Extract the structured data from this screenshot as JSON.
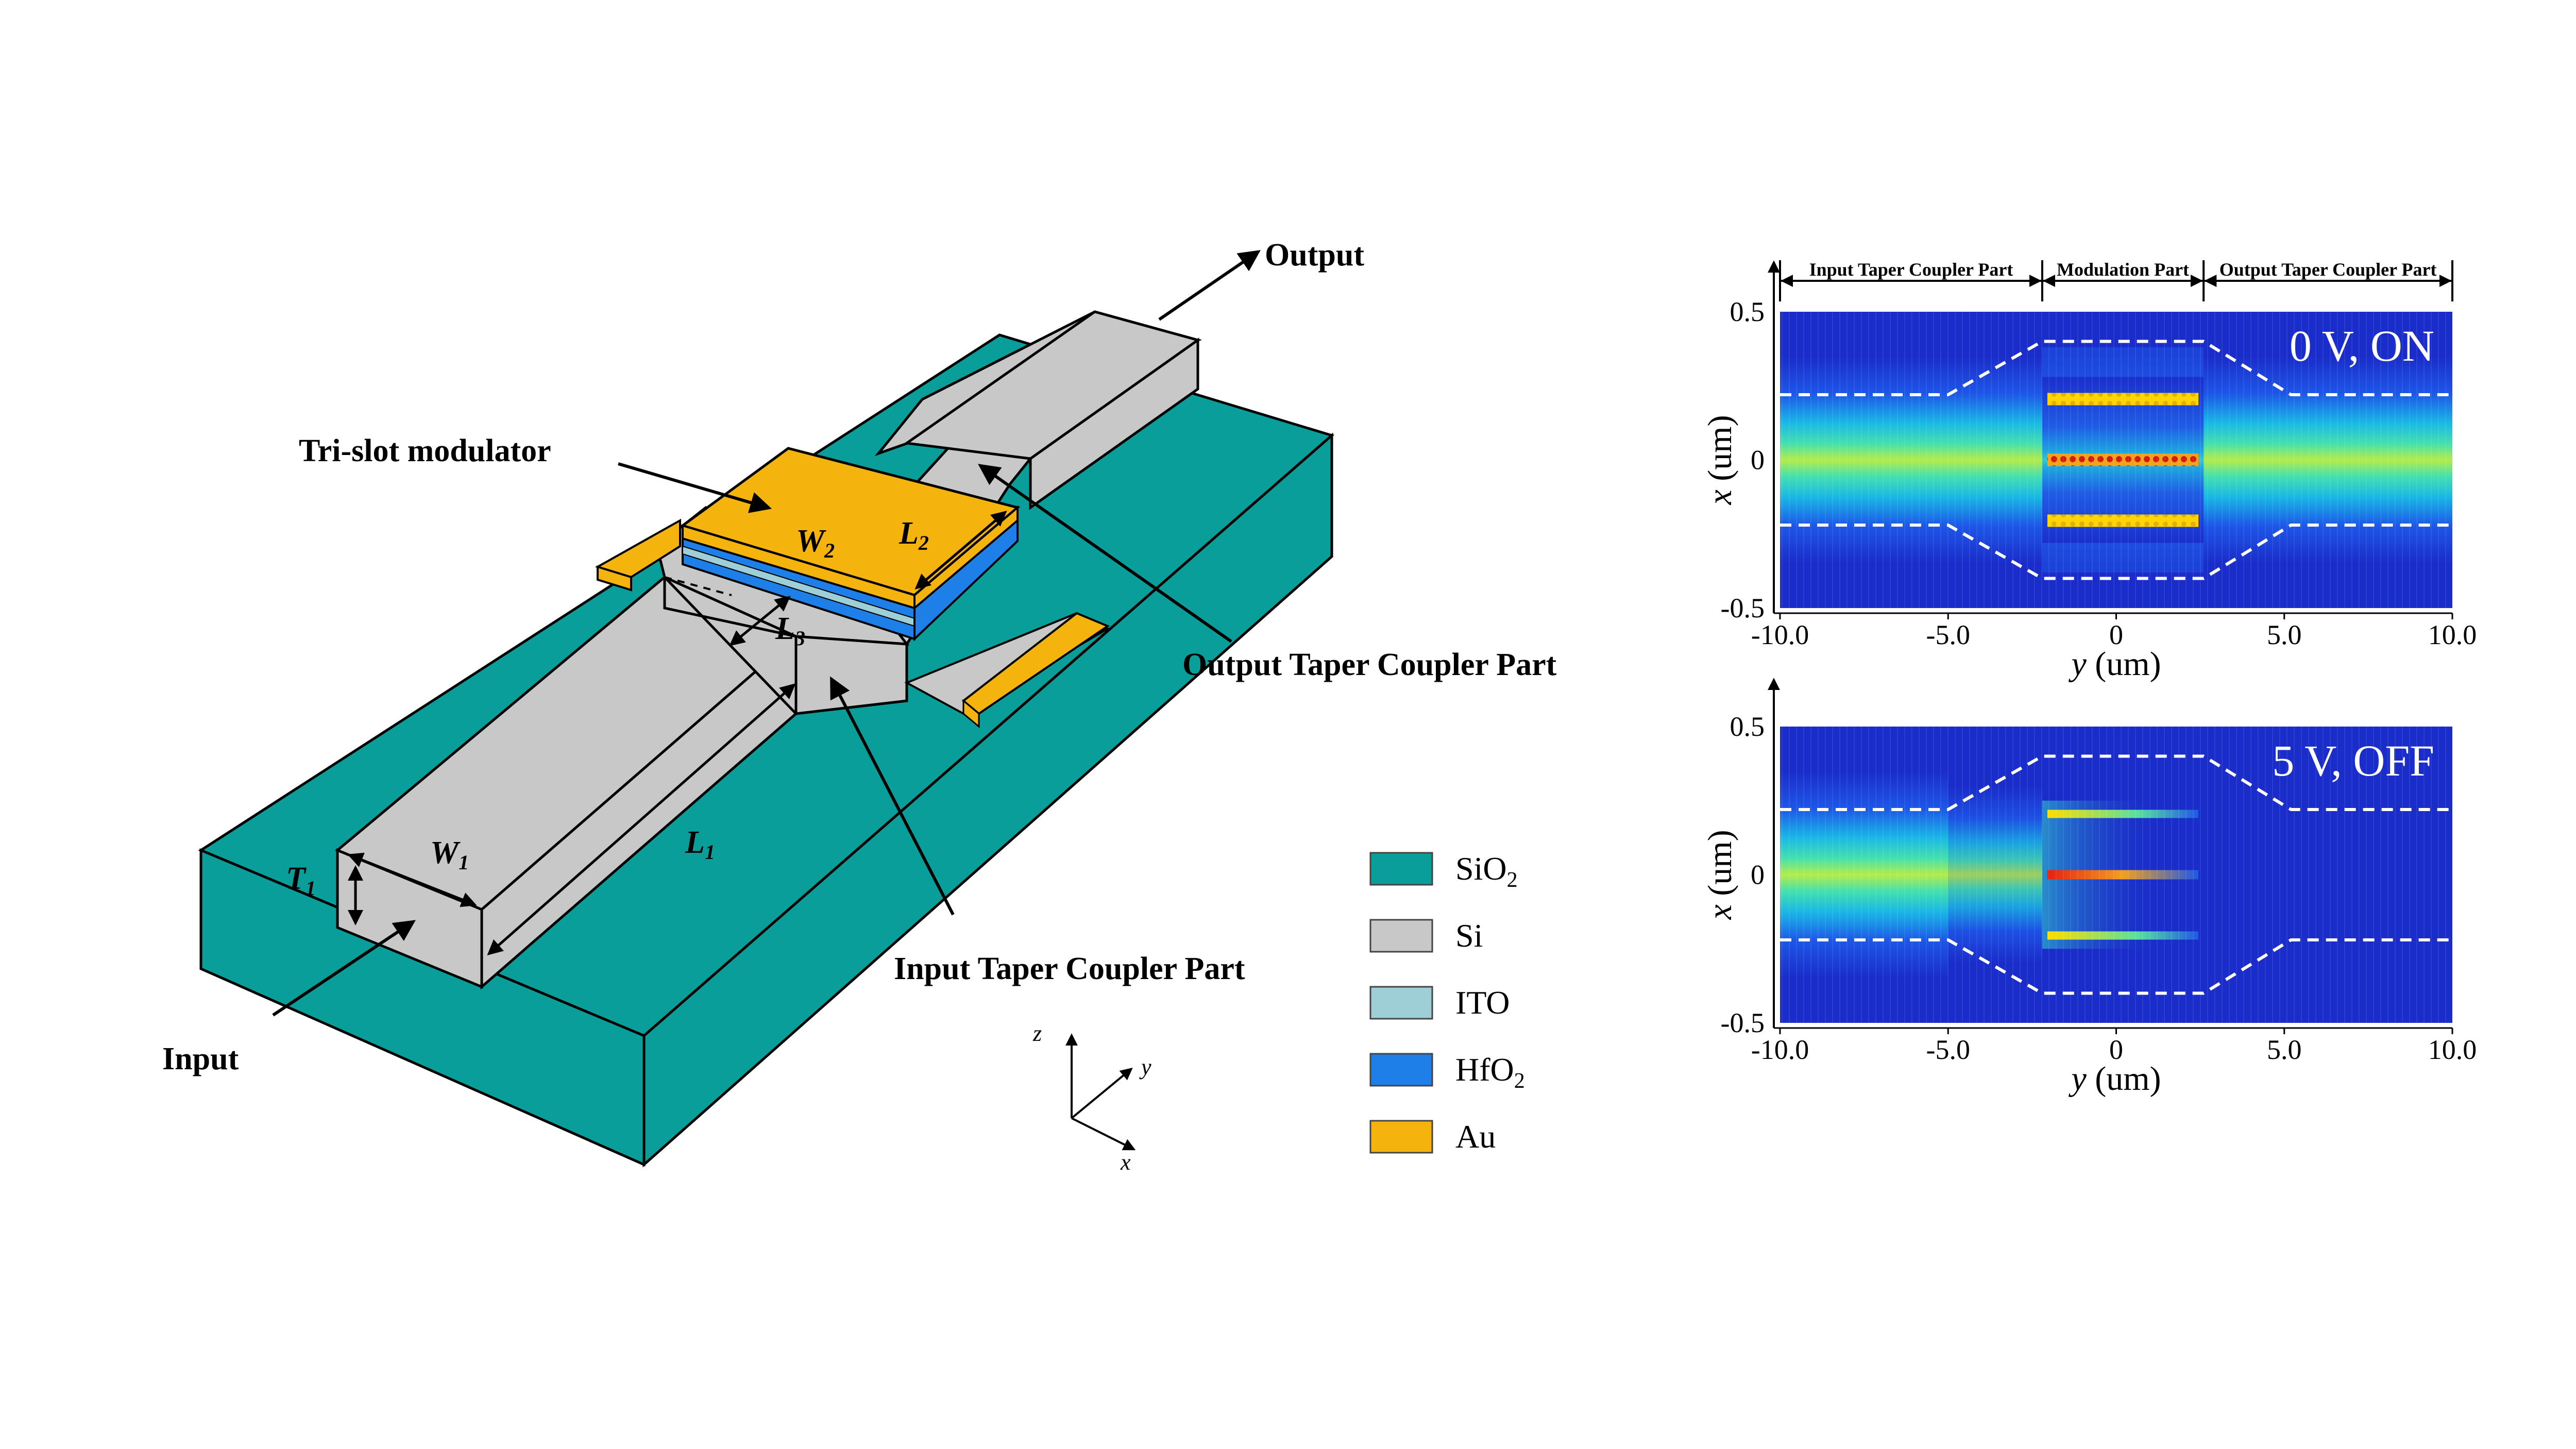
{
  "device": {
    "labels": {
      "output": "Output",
      "input": "Input",
      "tri_slot": "Tri-slot modulator",
      "output_taper": "Output Taper Coupler Part",
      "input_taper": "Input Taper Coupler Part"
    },
    "dimensions": {
      "W1": "W",
      "W1_sub": "1",
      "W2": "W",
      "W2_sub": "2",
      "L1": "L",
      "L1_sub": "1",
      "L2": "L",
      "L2_sub": "2",
      "L3": "L",
      "L3_sub": "3",
      "T1": "T",
      "T1_sub": "1"
    },
    "axes_triad": {
      "z": "z",
      "y": "y",
      "x": "x"
    }
  },
  "legend": [
    {
      "name": "SiO",
      "sub": "2",
      "color": "#0a9e9a"
    },
    {
      "name": "Si",
      "sub": "",
      "color": "#c8c8c8"
    },
    {
      "name": "ITO",
      "sub": "",
      "color": "#9fcfd6"
    },
    {
      "name": "HfO",
      "sub": "2",
      "color": "#1e7fe8"
    },
    {
      "name": "Au",
      "sub": "",
      "color": "#f5b40d"
    }
  ],
  "field_plots": {
    "sections": [
      "Input Taper Coupler Part",
      "Modulation Part",
      "Output Taper Coupler Part"
    ],
    "x_ticks": [
      "-10.0",
      "-5.0",
      "0",
      "5.0",
      "10.0"
    ],
    "y_ticks": [
      "0.5",
      "0",
      "-0.5"
    ],
    "xlabel_var": "y",
    "xlabel_unit": " (um)",
    "ylabel_var": "x",
    "ylabel_unit": " (um)",
    "plots": [
      {
        "state": "0 V, ON",
        "modulation": "on"
      },
      {
        "state": "5 V, OFF",
        "modulation": "off"
      }
    ]
  }
}
